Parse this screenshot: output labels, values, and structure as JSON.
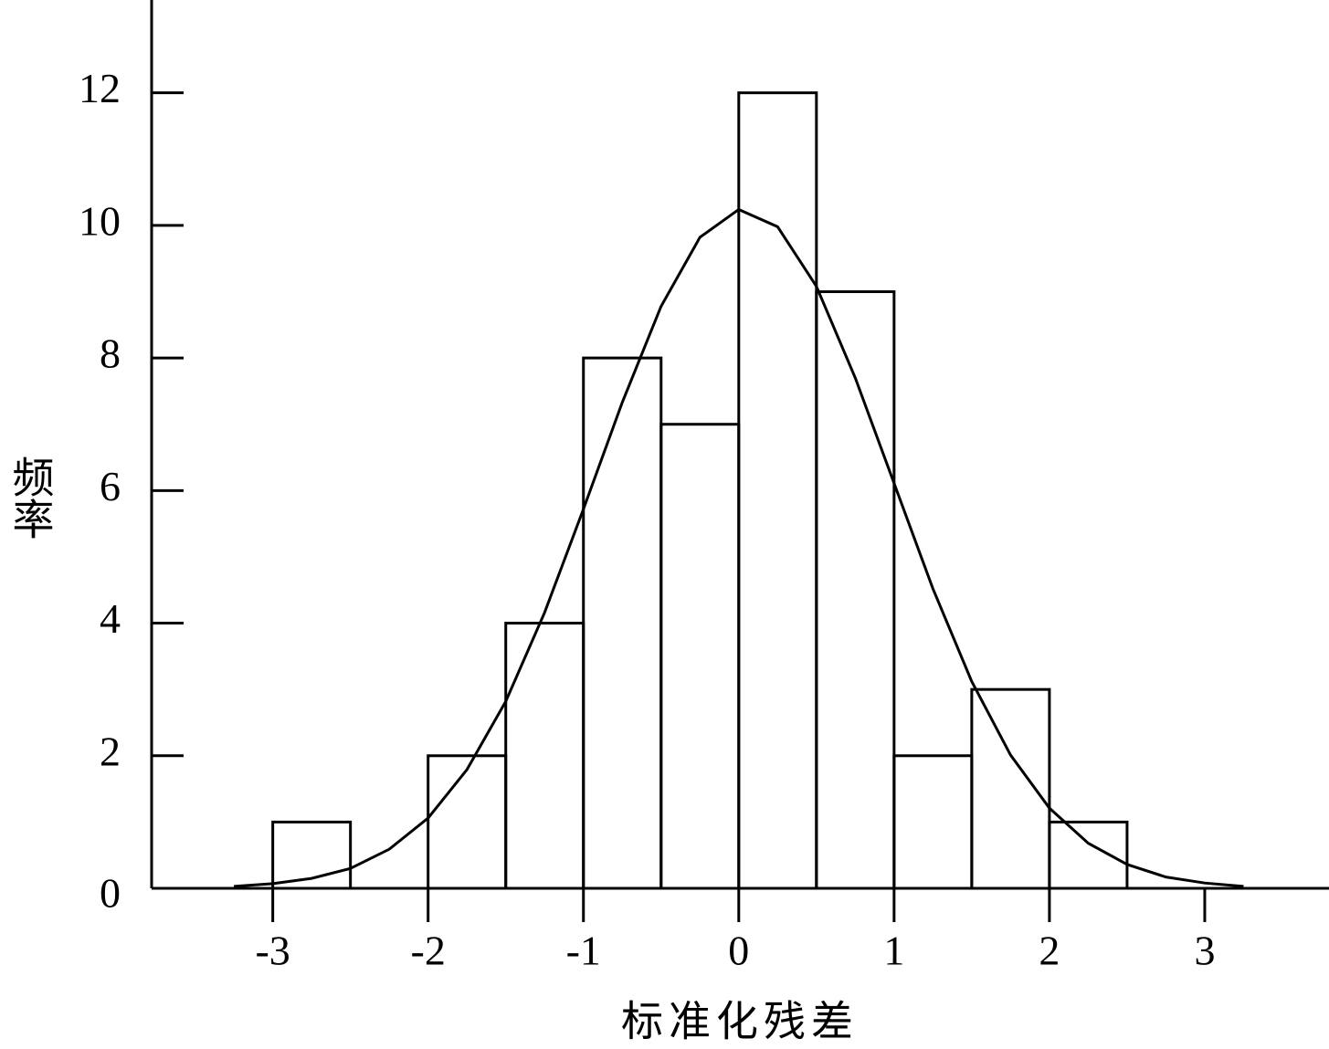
{
  "chart_data": {
    "type": "histogram",
    "xlabel": "标准化残差",
    "ylabel": "频率",
    "bins": [
      -3,
      -2.5,
      -2,
      -1.5,
      -1,
      -0.5,
      0,
      0.5,
      1,
      1.5,
      2,
      2.5
    ],
    "values": [
      1,
      0,
      2,
      4,
      8,
      7,
      12,
      9,
      2,
      3,
      1
    ],
    "curve": {
      "x": [
        -3.25,
        -3,
        -2.75,
        -2.5,
        -2.25,
        -2,
        -1.75,
        -1.5,
        -1.25,
        -1,
        -0.75,
        -0.5,
        -0.25,
        0,
        0.25,
        0.5,
        0.75,
        1,
        1.25,
        1.5,
        1.75,
        2,
        2.25,
        2.5,
        2.75,
        3,
        3.25
      ],
      "y": [
        0.03,
        0.07,
        0.15,
        0.3,
        0.59,
        1.06,
        1.79,
        2.82,
        4.16,
        5.72,
        7.33,
        8.78,
        9.82,
        10.24,
        9.98,
        9.08,
        7.7,
        6.11,
        4.52,
        3.12,
        2.01,
        1.21,
        0.68,
        0.36,
        0.17,
        0.08,
        0.03
      ]
    },
    "xlim": [
      -3.78,
      3.8
    ],
    "ylim": [
      0,
      13.4
    ],
    "xticks": [
      -3,
      -2,
      -1,
      0,
      1,
      2,
      3
    ],
    "yticks": [
      0,
      2,
      4,
      6,
      8,
      10,
      12
    ],
    "color": "#000000"
  }
}
